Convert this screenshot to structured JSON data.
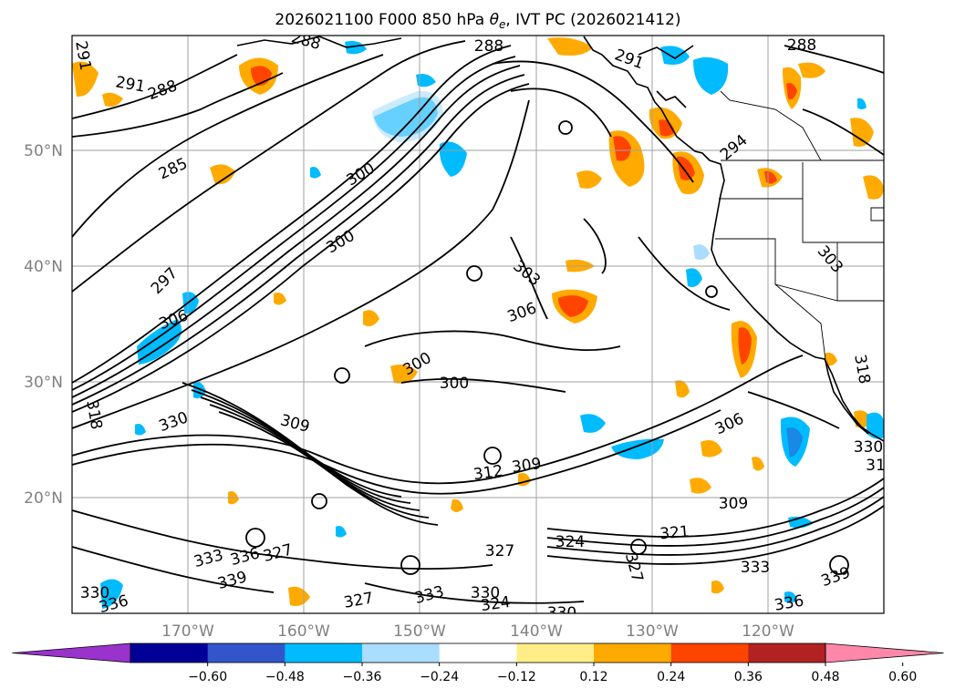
{
  "title": {
    "prefix": "2026021100 F000 850 hPa ",
    "symbol": "θ",
    "subscript": "e",
    "suffix": ", IVT PC (2026021412)"
  },
  "lat_labels": [
    "50°N",
    "40°N",
    "30°N",
    "20°N"
  ],
  "lon_labels": [
    "170°W",
    "160°W",
    "150°W",
    "140°W",
    "130°W",
    "120°W"
  ],
  "colorbar": {
    "ticks": [
      "−0.60",
      "−0.48",
      "−0.36",
      "−0.24",
      "−0.12",
      "0.12",
      "0.24",
      "0.36",
      "0.48",
      "0.60"
    ],
    "colors": [
      "#9933cc",
      "#000099",
      "#3355cc",
      "#00bbff",
      "#aaddff",
      "#ffffff",
      "#ffee88",
      "#ffaa00",
      "#ff4400",
      "#b22222",
      "#ff88aa"
    ]
  },
  "map": {
    "lon_range": [
      -180,
      -110
    ],
    "lat_range": [
      10,
      60
    ],
    "grid": true,
    "contour_labels": [
      "288",
      "291",
      "288",
      "285",
      "291",
      "288",
      "297",
      "300",
      "300",
      "303",
      "306",
      "306",
      "300",
      "300",
      "318",
      "330",
      "309",
      "312",
      "309",
      "306",
      "309",
      "321",
      "327",
      "324",
      "327",
      "333",
      "333",
      "336",
      "327",
      "339",
      "330",
      "336",
      "327",
      "333",
      "330",
      "324",
      "330",
      "336",
      "339",
      "303",
      "294",
      "291",
      "288",
      "318",
      "330",
      "31"
    ]
  }
}
